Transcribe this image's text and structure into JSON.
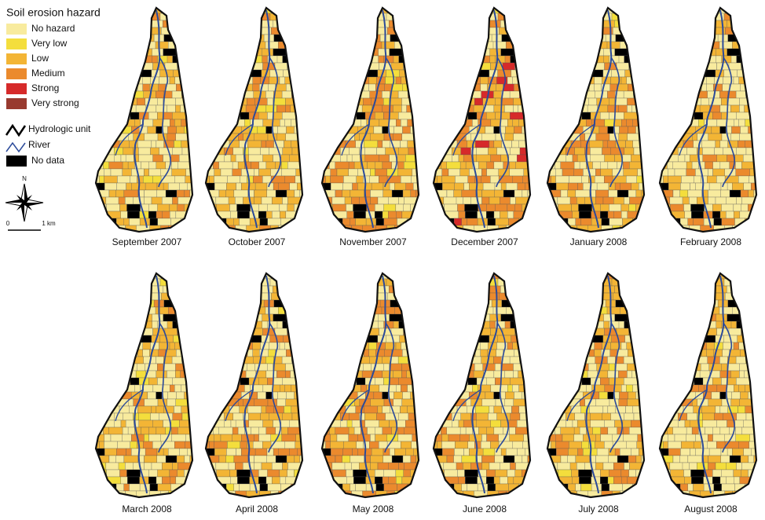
{
  "legend": {
    "title": "Soil erosion hazard",
    "classes": [
      {
        "label": "No hazard",
        "color": "#f8eb9e"
      },
      {
        "label": "Very low",
        "color": "#f4de3c"
      },
      {
        "label": "Low",
        "color": "#f3b535"
      },
      {
        "label": "Medium",
        "color": "#eb8a2d"
      },
      {
        "label": "Strong",
        "color": "#d62a2a"
      },
      {
        "label": "Very strong",
        "color": "#983a2f"
      }
    ],
    "symbols": [
      {
        "label": "Hydrologic unit"
      },
      {
        "label": "River"
      },
      {
        "label": "No data"
      }
    ]
  },
  "north_arrow": {
    "label": "N"
  },
  "scale_bar": {
    "start": "0",
    "end": "1 km"
  },
  "panels": [
    {
      "label": "September 2007"
    },
    {
      "label": "October 2007"
    },
    {
      "label": "November 2007"
    },
    {
      "label": "December 2007"
    },
    {
      "label": "January 2008"
    },
    {
      "label": "February 2008"
    },
    {
      "label": "March 2008"
    },
    {
      "label": "April 2008"
    },
    {
      "label": "May 2008"
    },
    {
      "label": "June 2008"
    },
    {
      "label": "July 2008"
    },
    {
      "label": "August 2008"
    }
  ]
}
